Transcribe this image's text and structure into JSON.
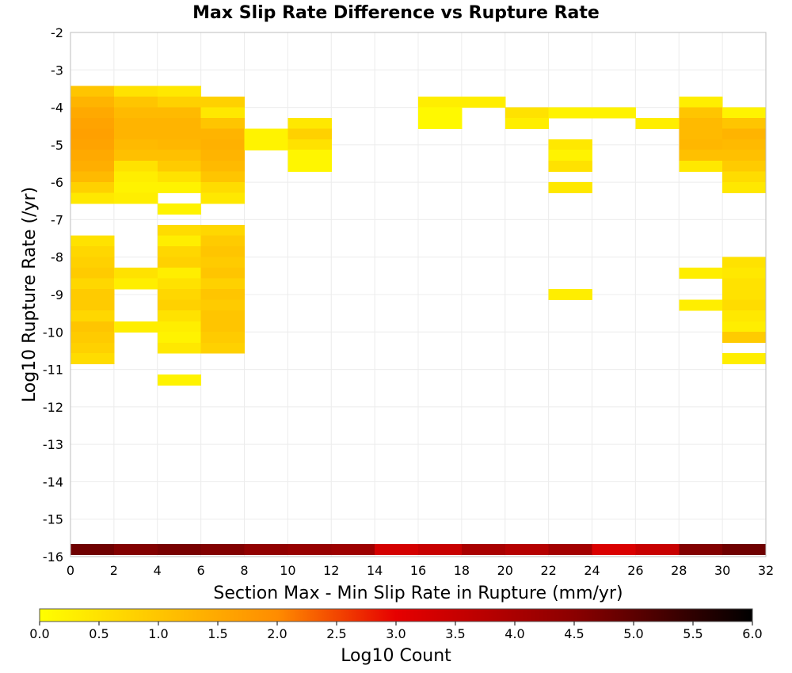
{
  "chart_data": {
    "type": "heatmap",
    "title": "Max Slip Rate Difference vs Rupture Rate",
    "xlabel": "Section Max - Min Slip Rate in Rupture (mm/yr)",
    "ylabel": "Log10 Rupture Rate (/yr)",
    "xlim": [
      0,
      32
    ],
    "ylim": [
      -16,
      -2
    ],
    "x_bin_width": 2,
    "y_bin_height": 0.285,
    "x_ticks": [
      "0",
      "2",
      "4",
      "6",
      "8",
      "10",
      "12",
      "14",
      "16",
      "18",
      "20",
      "22",
      "24",
      "26",
      "28",
      "30",
      "32"
    ],
    "y_ticks": [
      "-2",
      "-3",
      "-4",
      "-5",
      "-6",
      "-7",
      "-8",
      "-9",
      "-10",
      "-11",
      "-12",
      "-13",
      "-14",
      "-15",
      "-16"
    ],
    "grid": true,
    "colorscale": {
      "label": "Log10 Count",
      "min": 0,
      "max": 6,
      "ticks": [
        "0.0",
        "0.5",
        "1.0",
        "1.5",
        "2.0",
        "2.5",
        "3.0",
        "3.5",
        "4.0",
        "4.5",
        "5.0",
        "5.5",
        "6.0"
      ],
      "stops": [
        [
          0.0,
          "#ffff00"
        ],
        [
          0.3333,
          "#ff8c00"
        ],
        [
          0.5,
          "#e60000"
        ],
        [
          0.75,
          "#8b0000"
        ],
        [
          1.0,
          "#000000"
        ]
      ]
    },
    "cells": [
      {
        "x": 0,
        "y": -3.71,
        "v": 1.0
      },
      {
        "x": 0,
        "y": -4.0,
        "v": 1.3
      },
      {
        "x": 0,
        "y": -4.28,
        "v": 1.5
      },
      {
        "x": 0,
        "y": -4.57,
        "v": 1.6
      },
      {
        "x": 0,
        "y": -4.85,
        "v": 1.65
      },
      {
        "x": 0,
        "y": -5.14,
        "v": 1.6
      },
      {
        "x": 0,
        "y": -5.42,
        "v": 1.5
      },
      {
        "x": 0,
        "y": -5.71,
        "v": 1.4
      },
      {
        "x": 0,
        "y": -6.0,
        "v": 1.2
      },
      {
        "x": 0,
        "y": -6.28,
        "v": 0.8
      },
      {
        "x": 0,
        "y": -6.57,
        "v": 0.4
      },
      {
        "x": 0,
        "y": -7.71,
        "v": 0.5
      },
      {
        "x": 0,
        "y": -8.0,
        "v": 0.7
      },
      {
        "x": 0,
        "y": -8.28,
        "v": 0.8
      },
      {
        "x": 0,
        "y": -8.57,
        "v": 0.9
      },
      {
        "x": 0,
        "y": -8.85,
        "v": 0.7
      },
      {
        "x": 0,
        "y": -9.14,
        "v": 0.9
      },
      {
        "x": 0,
        "y": -9.42,
        "v": 0.9
      },
      {
        "x": 0,
        "y": -9.71,
        "v": 0.7
      },
      {
        "x": 0,
        "y": -10.0,
        "v": 1.0
      },
      {
        "x": 0,
        "y": -10.28,
        "v": 0.9
      },
      {
        "x": 0,
        "y": -10.57,
        "v": 0.8
      },
      {
        "x": 0,
        "y": -10.85,
        "v": 0.6
      },
      {
        "x": 2,
        "y": -3.71,
        "v": 0.5
      },
      {
        "x": 2,
        "y": -4.0,
        "v": 1.0
      },
      {
        "x": 2,
        "y": -4.28,
        "v": 1.2
      },
      {
        "x": 2,
        "y": -4.57,
        "v": 1.3
      },
      {
        "x": 2,
        "y": -4.85,
        "v": 1.3
      },
      {
        "x": 2,
        "y": -5.14,
        "v": 1.2
      },
      {
        "x": 2,
        "y": -5.42,
        "v": 1.1
      },
      {
        "x": 2,
        "y": -5.71,
        "v": 0.5
      },
      {
        "x": 2,
        "y": -6.0,
        "v": 0.3
      },
      {
        "x": 2,
        "y": -6.28,
        "v": 0.2
      },
      {
        "x": 2,
        "y": -6.57,
        "v": 0.3
      },
      {
        "x": 2,
        "y": -8.57,
        "v": 0.5
      },
      {
        "x": 2,
        "y": -8.85,
        "v": 0.3
      },
      {
        "x": 2,
        "y": -10.0,
        "v": 0.3
      },
      {
        "x": 4,
        "y": -3.71,
        "v": 0.4
      },
      {
        "x": 4,
        "y": -4.0,
        "v": 0.8
      },
      {
        "x": 4,
        "y": -4.28,
        "v": 1.2
      },
      {
        "x": 4,
        "y": -4.57,
        "v": 1.3
      },
      {
        "x": 4,
        "y": -4.85,
        "v": 1.3
      },
      {
        "x": 4,
        "y": -5.14,
        "v": 1.25
      },
      {
        "x": 4,
        "y": -5.42,
        "v": 1.1
      },
      {
        "x": 4,
        "y": -5.71,
        "v": 0.9
      },
      {
        "x": 4,
        "y": -6.0,
        "v": 0.5
      },
      {
        "x": 4,
        "y": -6.28,
        "v": 0.2
      },
      {
        "x": 4,
        "y": -6.85,
        "v": 0.2
      },
      {
        "x": 4,
        "y": -7.42,
        "v": 0.6
      },
      {
        "x": 4,
        "y": -7.71,
        "v": 0.3
      },
      {
        "x": 4,
        "y": -8.0,
        "v": 0.7
      },
      {
        "x": 4,
        "y": -8.28,
        "v": 0.8
      },
      {
        "x": 4,
        "y": -8.57,
        "v": 0.3
      },
      {
        "x": 4,
        "y": -8.85,
        "v": 0.5
      },
      {
        "x": 4,
        "y": -9.14,
        "v": 0.7
      },
      {
        "x": 4,
        "y": -9.42,
        "v": 0.8
      },
      {
        "x": 4,
        "y": -9.71,
        "v": 0.5
      },
      {
        "x": 4,
        "y": -10.0,
        "v": 0.3
      },
      {
        "x": 4,
        "y": -10.28,
        "v": 0.2
      },
      {
        "x": 4,
        "y": -10.57,
        "v": 0.4
      },
      {
        "x": 4,
        "y": -11.42,
        "v": 0.2
      },
      {
        "x": 6,
        "y": -4.0,
        "v": 0.8
      },
      {
        "x": 6,
        "y": -4.28,
        "v": 0.4
      },
      {
        "x": 6,
        "y": -4.57,
        "v": 1.0
      },
      {
        "x": 6,
        "y": -4.85,
        "v": 1.3
      },
      {
        "x": 6,
        "y": -5.14,
        "v": 1.35
      },
      {
        "x": 6,
        "y": -5.42,
        "v": 1.3
      },
      {
        "x": 6,
        "y": -5.71,
        "v": 1.2
      },
      {
        "x": 6,
        "y": -6.0,
        "v": 1.0
      },
      {
        "x": 6,
        "y": -6.28,
        "v": 0.6
      },
      {
        "x": 6,
        "y": -6.57,
        "v": 0.4
      },
      {
        "x": 6,
        "y": -7.42,
        "v": 0.7
      },
      {
        "x": 6,
        "y": -7.71,
        "v": 0.9
      },
      {
        "x": 6,
        "y": -8.0,
        "v": 1.0
      },
      {
        "x": 6,
        "y": -8.28,
        "v": 0.9
      },
      {
        "x": 6,
        "y": -8.57,
        "v": 1.0
      },
      {
        "x": 6,
        "y": -8.85,
        "v": 0.8
      },
      {
        "x": 6,
        "y": -9.14,
        "v": 1.0
      },
      {
        "x": 6,
        "y": -9.42,
        "v": 0.9
      },
      {
        "x": 6,
        "y": -9.71,
        "v": 1.0
      },
      {
        "x": 6,
        "y": -10.0,
        "v": 1.0
      },
      {
        "x": 6,
        "y": -10.28,
        "v": 0.9
      },
      {
        "x": 6,
        "y": -10.57,
        "v": 0.8
      },
      {
        "x": 8,
        "y": -4.85,
        "v": 0.2
      },
      {
        "x": 8,
        "y": -5.14,
        "v": 0.2
      },
      {
        "x": 10,
        "y": -4.57,
        "v": 0.4
      },
      {
        "x": 10,
        "y": -4.85,
        "v": 0.8
      },
      {
        "x": 10,
        "y": -5.14,
        "v": 0.5
      },
      {
        "x": 10,
        "y": -5.42,
        "v": 0.15
      },
      {
        "x": 10,
        "y": -5.71,
        "v": 0.15
      },
      {
        "x": 16,
        "y": -4.0,
        "v": 0.3
      },
      {
        "x": 16,
        "y": -4.28,
        "v": 0.1
      },
      {
        "x": 16,
        "y": -4.57,
        "v": 0.1
      },
      {
        "x": 18,
        "y": -4.0,
        "v": 0.3
      },
      {
        "x": 20,
        "y": -4.28,
        "v": 0.5
      },
      {
        "x": 20,
        "y": -4.57,
        "v": 0.3
      },
      {
        "x": 22,
        "y": -4.28,
        "v": 0.2
      },
      {
        "x": 22,
        "y": -5.14,
        "v": 0.4
      },
      {
        "x": 22,
        "y": -5.42,
        "v": 0.2
      },
      {
        "x": 22,
        "y": -5.71,
        "v": 0.5
      },
      {
        "x": 22,
        "y": -6.28,
        "v": 0.4
      },
      {
        "x": 22,
        "y": -9.14,
        "v": 0.3
      },
      {
        "x": 24,
        "y": -4.28,
        "v": 0.2
      },
      {
        "x": 26,
        "y": -4.57,
        "v": 0.3
      },
      {
        "x": 28,
        "y": -4.0,
        "v": 0.3
      },
      {
        "x": 28,
        "y": -4.28,
        "v": 1.0
      },
      {
        "x": 28,
        "y": -4.57,
        "v": 1.2
      },
      {
        "x": 28,
        "y": -4.85,
        "v": 1.2
      },
      {
        "x": 28,
        "y": -5.14,
        "v": 1.25
      },
      {
        "x": 28,
        "y": -5.42,
        "v": 1.1
      },
      {
        "x": 28,
        "y": -5.71,
        "v": 0.4
      },
      {
        "x": 28,
        "y": -8.57,
        "v": 0.3
      },
      {
        "x": 28,
        "y": -9.42,
        "v": 0.3
      },
      {
        "x": 30,
        "y": -4.28,
        "v": 0.2
      },
      {
        "x": 30,
        "y": -4.57,
        "v": 1.0
      },
      {
        "x": 30,
        "y": -4.85,
        "v": 1.3
      },
      {
        "x": 30,
        "y": -5.14,
        "v": 1.2
      },
      {
        "x": 30,
        "y": -5.42,
        "v": 1.1
      },
      {
        "x": 30,
        "y": -5.71,
        "v": 0.9
      },
      {
        "x": 30,
        "y": -6.0,
        "v": 0.6
      },
      {
        "x": 30,
        "y": -6.28,
        "v": 0.4
      },
      {
        "x": 30,
        "y": -8.28,
        "v": 0.5
      },
      {
        "x": 30,
        "y": -8.57,
        "v": 0.4
      },
      {
        "x": 30,
        "y": -8.85,
        "v": 0.5
      },
      {
        "x": 30,
        "y": -9.14,
        "v": 0.5
      },
      {
        "x": 30,
        "y": -9.42,
        "v": 0.6
      },
      {
        "x": 30,
        "y": -9.71,
        "v": 0.4
      },
      {
        "x": 30,
        "y": -10.0,
        "v": 0.3
      },
      {
        "x": 30,
        "y": -10.28,
        "v": 0.9
      },
      {
        "x": 30,
        "y": -10.85,
        "v": 0.3
      },
      {
        "x": 0,
        "y": -15.95,
        "v": 4.8
      },
      {
        "x": 2,
        "y": -15.95,
        "v": 4.6
      },
      {
        "x": 4,
        "y": -15.95,
        "v": 4.7
      },
      {
        "x": 6,
        "y": -15.95,
        "v": 4.6
      },
      {
        "x": 8,
        "y": -15.95,
        "v": 4.4
      },
      {
        "x": 10,
        "y": -15.95,
        "v": 4.3
      },
      {
        "x": 12,
        "y": -15.95,
        "v": 4.2
      },
      {
        "x": 14,
        "y": -15.95,
        "v": 3.3
      },
      {
        "x": 16,
        "y": -15.95,
        "v": 3.5
      },
      {
        "x": 18,
        "y": -15.95,
        "v": 4.0
      },
      {
        "x": 20,
        "y": -15.95,
        "v": 3.8
      },
      {
        "x": 22,
        "y": -15.95,
        "v": 4.1
      },
      {
        "x": 24,
        "y": -15.95,
        "v": 3.2
      },
      {
        "x": 26,
        "y": -15.95,
        "v": 3.5
      },
      {
        "x": 28,
        "y": -15.95,
        "v": 4.6
      },
      {
        "x": 30,
        "y": -15.95,
        "v": 4.8
      }
    ]
  }
}
